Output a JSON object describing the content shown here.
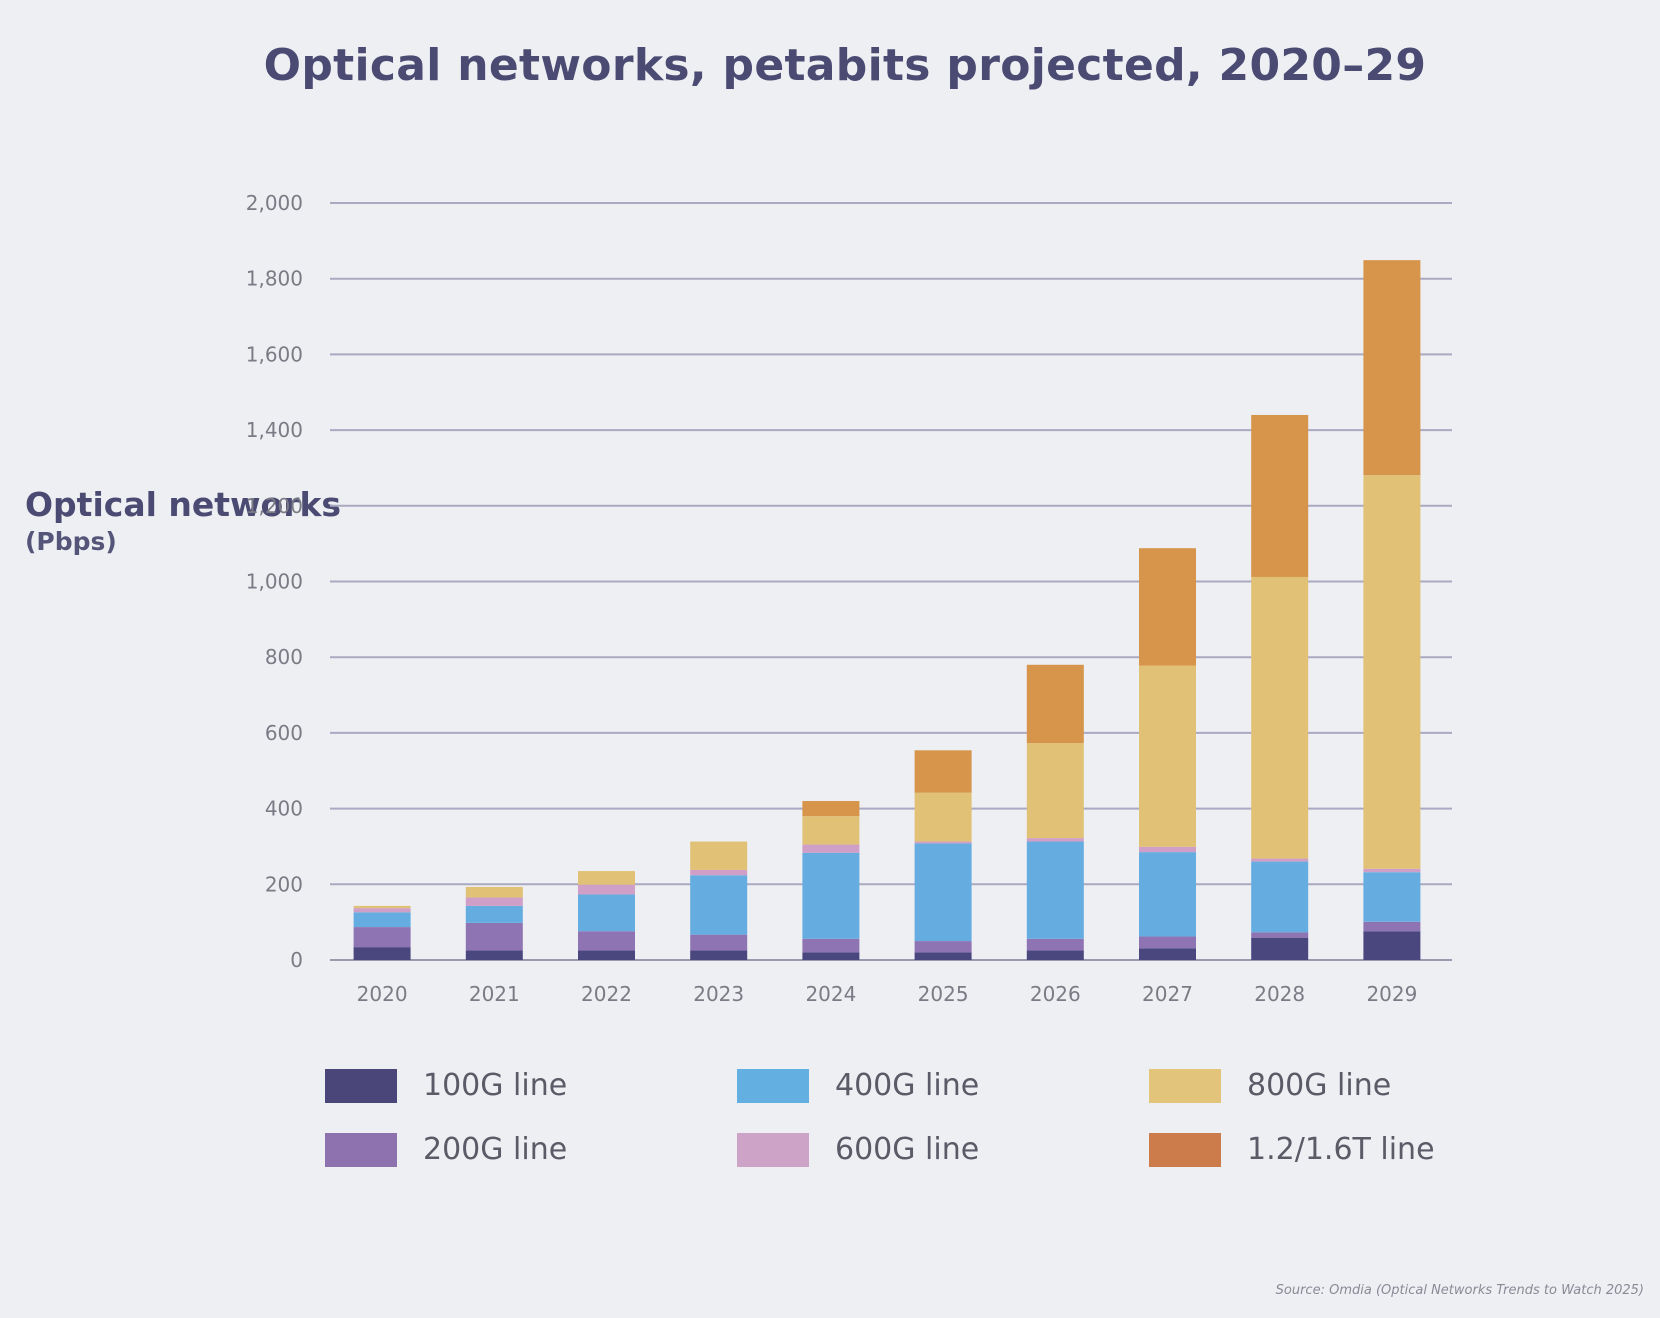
{
  "chart_data": {
    "type": "bar",
    "stacked": true,
    "title": "Optical networks, petabits projected, 2020–29",
    "xlabel": "",
    "ylabel": "Optical networks",
    "ylabel_unit": "(Pbps)",
    "ylim": [
      0,
      2000
    ],
    "yticks": [
      0,
      200,
      400,
      600,
      800,
      1000,
      1200,
      1400,
      1600,
      1800,
      2000
    ],
    "ytick_labels": [
      "0",
      "200",
      "400",
      "600",
      "800",
      "1,000",
      "1,200",
      "1,400",
      "1,600",
      "1,800",
      "2,000"
    ],
    "grid": true,
    "legend_position": "bottom",
    "categories": [
      "2020",
      "2021",
      "2022",
      "2023",
      "2024",
      "2025",
      "2026",
      "2027",
      "2028",
      "2029"
    ],
    "series": [
      {
        "name": "100G line",
        "color": "#4a477f",
        "values": [
          34,
          25,
          25,
          25,
          20,
          20,
          25,
          31,
          59,
          76
        ]
      },
      {
        "name": "200G line",
        "color": "#8f74b4",
        "values": [
          53,
          73,
          51,
          42,
          36,
          30,
          31,
          31,
          14,
          25
        ]
      },
      {
        "name": "400G line",
        "color": "#65ade0",
        "values": [
          39,
          45,
          97,
          157,
          227,
          258,
          257,
          223,
          187,
          131
        ]
      },
      {
        "name": "600G line",
        "color": "#cf9fc7",
        "values": [
          11,
          22,
          26,
          14,
          22,
          5,
          9,
          14,
          8,
          9
        ]
      },
      {
        "name": "800G line",
        "color": "#e1c176",
        "values": [
          6,
          28,
          36,
          75,
          75,
          129,
          251,
          479,
          744,
          1040
        ]
      },
      {
        "name": "1.2/1.6T line",
        "color": "#d6954a",
        "values": [
          0,
          0,
          0,
          0,
          40,
          112,
          207,
          310,
          428,
          568
        ]
      }
    ],
    "source": "Source: Omdia (Optical Networks Trends to Watch 2025)"
  },
  "legend_swatch_colors": {
    "100G line": "#4b4679",
    "200G line": "#8e72b0",
    "400G line": "#64afe2",
    "600G line": "#cda3c8",
    "800G line": "#e2c47b",
    "1.2/1.6T line": "#cc7c4b"
  }
}
